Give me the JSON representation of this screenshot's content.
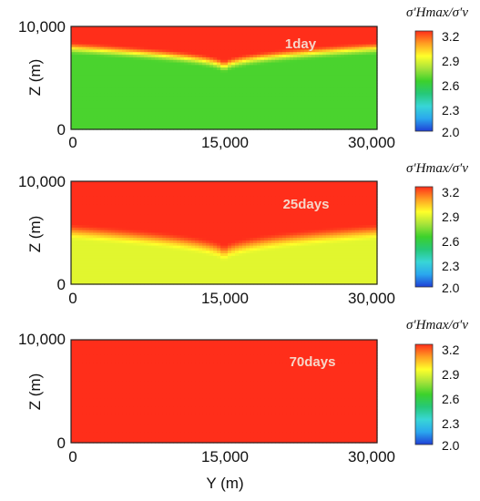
{
  "chart_data": [
    {
      "type": "heatmap",
      "annotation": "1day",
      "xlabel": "",
      "ylabel": "Z (m)",
      "xlim": [
        0,
        30000
      ],
      "ylim": [
        0,
        10000
      ],
      "x_ticks": [
        "0",
        "15,000",
        "30,000"
      ],
      "y_ticks": [
        "0",
        "10,000"
      ],
      "colorbar": {
        "title": "σ′Hmax/σ′v",
        "range": [
          2.0,
          3.2
        ],
        "ticks": [
          "3.2",
          "2.9",
          "2.6",
          "2.3",
          "2.0"
        ]
      },
      "field": {
        "background_value": 2.62,
        "top_value": 3.2,
        "front_depth_edges_m": 7200,
        "front_depth_center_m": 5300,
        "front_width_m": 1300
      }
    },
    {
      "type": "heatmap",
      "annotation": "25days",
      "xlabel": "",
      "ylabel": "Z (m)",
      "xlim": [
        0,
        30000
      ],
      "ylim": [
        0,
        10000
      ],
      "x_ticks": [
        "0",
        "15,000",
        "30,000"
      ],
      "y_ticks": [
        "0",
        "10,000"
      ],
      "colorbar": {
        "title": "σ′Hmax/σ′v",
        "range": [
          2.0,
          3.2
        ],
        "ticks": [
          "3.2",
          "2.9",
          "2.6",
          "2.3",
          "2.0"
        ]
      },
      "field": {
        "background_value": 2.85,
        "top_value": 3.2,
        "front_depth_edges_m": 4200,
        "front_depth_center_m": 2000,
        "front_width_m": 1700
      }
    },
    {
      "type": "heatmap",
      "annotation": "70days",
      "xlabel": "Y (m)",
      "ylabel": "Z (m)",
      "xlim": [
        0,
        30000
      ],
      "ylim": [
        0,
        10000
      ],
      "x_ticks": [
        "0",
        "15,000",
        "30,000"
      ],
      "y_ticks": [
        "0",
        "10,000"
      ],
      "colorbar": {
        "title": "σ′Hmax/σ′v",
        "range": [
          2.0,
          3.2
        ],
        "ticks": [
          "3.2",
          "2.9",
          "2.6",
          "2.3",
          "2.0"
        ]
      },
      "field": {
        "background_value": 3.2,
        "top_value": 3.2,
        "front_depth_edges_m": 0,
        "front_depth_center_m": 0,
        "front_width_m": 1
      }
    }
  ],
  "colormap": [
    {
      "v": 2.0,
      "c": "#1f3fd6"
    },
    {
      "v": 2.15,
      "c": "#2aa7ee"
    },
    {
      "v": 2.3,
      "c": "#38d6d6"
    },
    {
      "v": 2.45,
      "c": "#26c878"
    },
    {
      "v": 2.6,
      "c": "#3cd12c"
    },
    {
      "v": 2.75,
      "c": "#a6e33a"
    },
    {
      "v": 2.9,
      "c": "#ffff2a"
    },
    {
      "v": 3.05,
      "c": "#ff9f22"
    },
    {
      "v": 3.2,
      "c": "#ff2e1a"
    }
  ]
}
